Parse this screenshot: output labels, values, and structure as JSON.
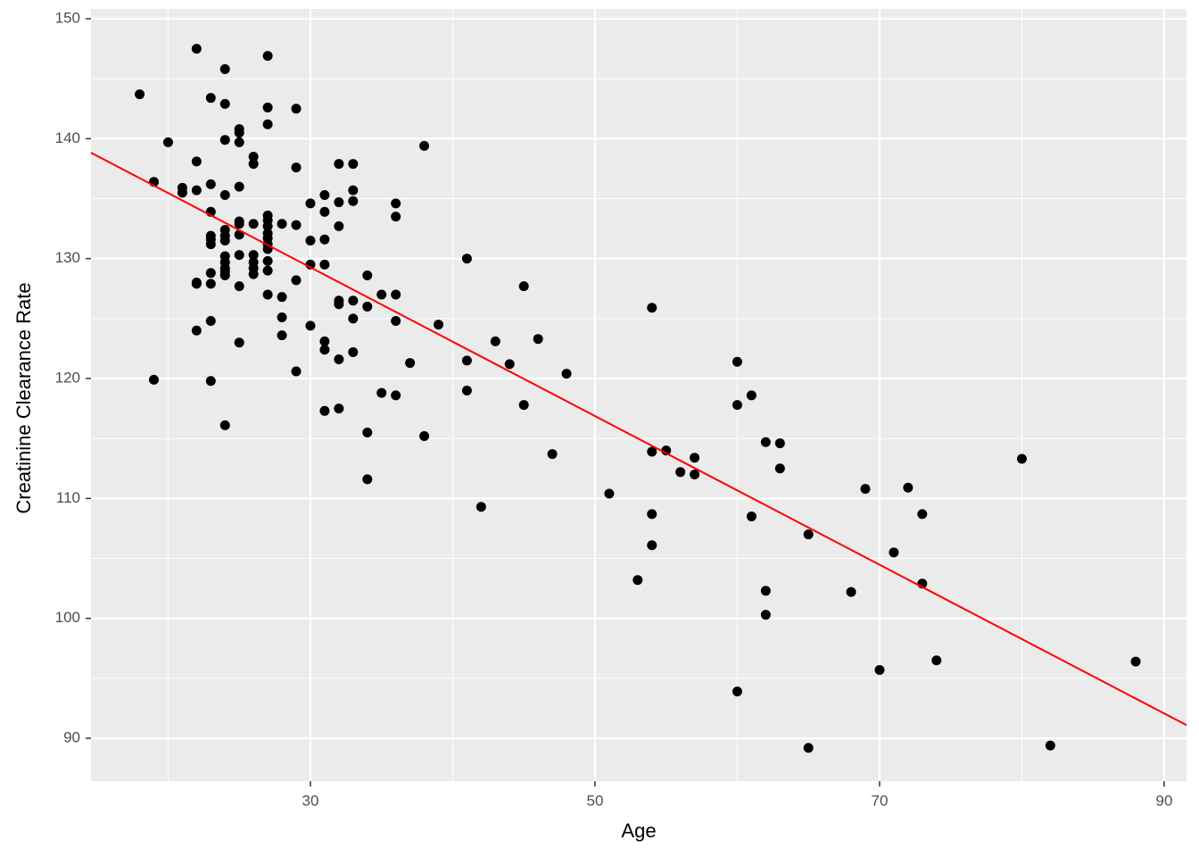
{
  "chart_data": {
    "type": "scatter",
    "x_label": "Age",
    "y_label": "Creatinine Clearance Rate",
    "color": "#000000",
    "x": [
      18,
      19,
      19,
      20,
      21,
      21,
      22,
      22,
      22,
      22,
      22,
      22,
      23,
      23,
      23,
      23,
      23,
      23,
      23,
      23,
      23,
      23,
      24,
      24,
      24,
      24,
      24,
      24,
      24,
      24,
      24,
      24,
      24,
      24,
      24,
      25,
      25,
      25,
      25,
      25,
      25,
      25,
      25,
      25,
      25,
      26,
      26,
      26,
      26,
      26,
      26,
      26,
      27,
      27,
      27,
      27,
      27,
      27,
      27,
      27,
      27,
      27,
      27,
      27,
      27,
      28,
      28,
      28,
      28,
      29,
      29,
      29,
      29,
      29,
      30,
      30,
      30,
      30,
      31,
      31,
      31,
      31,
      31,
      31,
      31,
      32,
      32,
      32,
      32,
      32,
      32,
      32,
      33,
      33,
      33,
      33,
      33,
      33,
      34,
      34,
      34,
      34,
      35,
      35,
      36,
      36,
      36,
      36,
      36,
      37,
      38,
      38,
      39,
      41,
      41,
      41,
      42,
      43,
      44,
      45,
      45,
      46,
      47,
      48,
      51,
      53,
      54,
      54,
      54,
      54,
      55,
      56,
      57,
      57,
      60,
      60,
      60,
      61,
      61,
      62,
      62,
      62,
      63,
      63,
      65,
      65,
      68,
      69,
      70,
      71,
      72,
      73,
      73,
      74,
      80,
      82,
      88
    ],
    "y": [
      143.7,
      136.4,
      119.9,
      139.7,
      135.9,
      135.5,
      147.5,
      138.1,
      135.7,
      128.0,
      127.9,
      124.0,
      143.4,
      136.2,
      133.9,
      131.9,
      131.6,
      131.2,
      128.8,
      127.9,
      124.8,
      119.8,
      145.8,
      142.9,
      139.9,
      135.3,
      132.4,
      131.9,
      131.5,
      130.2,
      129.7,
      129.2,
      128.9,
      128.6,
      116.1,
      140.8,
      140.5,
      139.7,
      136.0,
      133.1,
      132.9,
      132.0,
      130.3,
      127.7,
      123.0,
      138.5,
      137.9,
      132.9,
      130.3,
      129.7,
      129.2,
      128.7,
      146.9,
      142.6,
      141.2,
      133.6,
      133.2,
      132.7,
      132.1,
      131.7,
      131.2,
      130.8,
      129.8,
      129.0,
      127.0,
      132.9,
      126.8,
      125.1,
      123.6,
      142.5,
      137.6,
      132.8,
      128.2,
      120.6,
      134.6,
      131.5,
      129.5,
      124.4,
      135.3,
      133.9,
      131.6,
      129.5,
      123.1,
      122.4,
      117.3,
      137.9,
      134.7,
      132.7,
      126.5,
      126.2,
      121.6,
      117.5,
      137.9,
      135.7,
      134.8,
      126.5,
      125.0,
      122.2,
      128.6,
      126.0,
      115.5,
      111.6,
      127.0,
      118.8,
      134.6,
      133.5,
      127.0,
      124.8,
      118.6,
      121.3,
      139.4,
      115.2,
      124.5,
      130.0,
      121.5,
      119.0,
      109.3,
      123.1,
      121.2,
      127.7,
      117.8,
      123.3,
      113.7,
      120.4,
      110.4,
      103.2,
      125.9,
      113.9,
      108.7,
      106.1,
      114.0,
      112.2,
      113.4,
      112.0,
      121.4,
      117.8,
      93.9,
      118.6,
      108.5,
      114.7,
      102.3,
      100.3,
      114.6,
      112.5,
      107.0,
      89.2,
      102.2,
      110.8,
      95.7,
      105.5,
      110.9,
      108.7,
      102.9,
      96.5,
      113.3,
      89.4,
      96.4
    ],
    "xlim": [
      14.58,
      91.57
    ],
    "ylim": [
      86.43,
      150.82
    ],
    "xticks": [
      30,
      50,
      70,
      90
    ],
    "yticks": [
      90,
      100,
      110,
      120,
      130,
      140,
      150
    ],
    "x_minor_ticks": [
      20,
      40,
      60,
      80
    ],
    "y_minor_ticks": [
      95,
      105,
      115,
      125,
      135,
      145
    ],
    "grid": true,
    "fit_line": {
      "x": [
        14.58,
        91.57
      ],
      "y": [
        138.83,
        91.1
      ],
      "color": "#ff0000"
    }
  }
}
